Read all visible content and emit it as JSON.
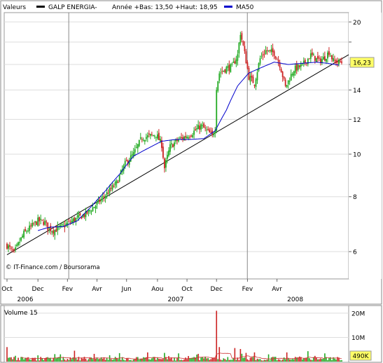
{
  "header": {
    "valeurs_label": "Valeurs",
    "series_label": "GALP ENERGIA-",
    "range_text": "Année +Bas: 13,50 +Haut: 18,95",
    "ma_label": "MA50"
  },
  "credit": "© IT-Finance.com / Boursorama",
  "colors": {
    "up": "#22aa22",
    "down": "#cc2222",
    "ma": "#0000cc",
    "trend": "#000000",
    "grid": "#dddddd",
    "frame": "#888888",
    "volume_ma": "#cc3333",
    "last_price_box": "#ffff66"
  },
  "chart_data": [
    {
      "type": "candlestick",
      "title": "GALP ENERGIA-",
      "y_scale": "log",
      "ylim": [
        5.2,
        21.0
      ],
      "y_ticks": [
        {
          "value": 6,
          "label": "6"
        },
        {
          "value": 8,
          "label": "8"
        },
        {
          "value": 10,
          "label": "10"
        },
        {
          "value": 12,
          "label": "12"
        },
        {
          "value": 14,
          "label": "14"
        },
        {
          "value": 16,
          "label": "16"
        },
        {
          "value": 18,
          "label": ""
        },
        {
          "value": 20,
          "label": "20"
        }
      ],
      "x_month_labels": [
        "Oct",
        "Dec",
        "Fev",
        "Avr",
        "Jun",
        "Aou",
        "Oct",
        "Dec",
        "Fev",
        "Avr"
      ],
      "x_year_labels": [
        "2006",
        "2007",
        "2008"
      ],
      "last_price": "16,23",
      "year_low": 13.5,
      "year_high": 18.95,
      "price_keypoints": [
        [
          0,
          6.2
        ],
        [
          5,
          5.95
        ],
        [
          12,
          6.6
        ],
        [
          22,
          7.05
        ],
        [
          27,
          7.0
        ],
        [
          29,
          6.8
        ],
        [
          33,
          6.7
        ],
        [
          40,
          6.85
        ],
        [
          48,
          7.1
        ],
        [
          56,
          7.3
        ],
        [
          64,
          7.7
        ],
        [
          72,
          8.2
        ],
        [
          78,
          8.6
        ],
        [
          84,
          9.5
        ],
        [
          90,
          10.0
        ],
        [
          96,
          10.9
        ],
        [
          102,
          11.0
        ],
        [
          106,
          11.1
        ],
        [
          110,
          10.5
        ],
        [
          112,
          9.3
        ],
        [
          116,
          10.4
        ],
        [
          122,
          10.8
        ],
        [
          128,
          11.0
        ],
        [
          132,
          11.2
        ],
        [
          138,
          11.6
        ],
        [
          142,
          11.3
        ],
        [
          146,
          11.0
        ],
        [
          148,
          11.5
        ],
        [
          149,
          14.2
        ],
        [
          151,
          15.3
        ],
        [
          156,
          15.7
        ],
        [
          160,
          15.8
        ],
        [
          164,
          16.8
        ],
        [
          166,
          18.9
        ],
        [
          168,
          17.6
        ],
        [
          172,
          15.0
        ],
        [
          176,
          14.5
        ],
        [
          180,
          16.5
        ],
        [
          184,
          17.2
        ],
        [
          190,
          17.0
        ],
        [
          194,
          16.0
        ],
        [
          198,
          14.2
        ],
        [
          204,
          15.6
        ],
        [
          210,
          15.9
        ],
        [
          216,
          16.8
        ],
        [
          222,
          16.3
        ],
        [
          226,
          16.6
        ],
        [
          229,
          17.1
        ],
        [
          232,
          16.3
        ],
        [
          236,
          16.2
        ]
      ],
      "moving_average": {
        "name": "MA50",
        "keypoints": [
          [
            22,
            6.7
          ],
          [
            30,
            6.82
          ],
          [
            40,
            6.84
          ],
          [
            50,
            7.05
          ],
          [
            60,
            7.6
          ],
          [
            70,
            8.25
          ],
          [
            80,
            9.0
          ],
          [
            90,
            9.9
          ],
          [
            100,
            10.3
          ],
          [
            110,
            10.7
          ],
          [
            120,
            10.8
          ],
          [
            130,
            10.8
          ],
          [
            140,
            10.85
          ],
          [
            148,
            11.3
          ],
          [
            156,
            12.6
          ],
          [
            164,
            14.3
          ],
          [
            172,
            15.3
          ],
          [
            180,
            15.7
          ],
          [
            190,
            16.2
          ],
          [
            200,
            16.0
          ],
          [
            210,
            16.1
          ],
          [
            220,
            16.2
          ],
          [
            228,
            16.1
          ],
          [
            236,
            15.95
          ]
        ]
      },
      "trendline": {
        "from": [
          0,
          5.9
        ],
        "to": [
          238,
          16.6
        ]
      }
    },
    {
      "type": "bar",
      "title": "Volume 15",
      "ylim": [
        0,
        22
      ],
      "unit": "M",
      "y_ticks": [
        {
          "value": 10,
          "label": "10M"
        },
        {
          "value": 20,
          "label": "20M"
        }
      ],
      "last_volume": "490K",
      "spikes": [
        [
          0,
          6.0
        ],
        [
          6,
          2.4
        ],
        [
          22,
          2.6
        ],
        [
          38,
          3.0
        ],
        [
          48,
          4.5
        ],
        [
          62,
          3.2
        ],
        [
          80,
          3.5
        ],
        [
          100,
          3.8
        ],
        [
          112,
          3.6
        ],
        [
          122,
          3.4
        ],
        [
          136,
          3.2
        ],
        [
          149,
          21.0
        ],
        [
          151,
          6.0
        ],
        [
          162,
          5.6
        ],
        [
          166,
          5.2
        ],
        [
          170,
          3.6
        ],
        [
          176,
          3.8
        ],
        [
          186,
          3.0
        ],
        [
          199,
          3.8
        ],
        [
          214,
          4.3
        ],
        [
          226,
          3.4
        ]
      ]
    }
  ]
}
